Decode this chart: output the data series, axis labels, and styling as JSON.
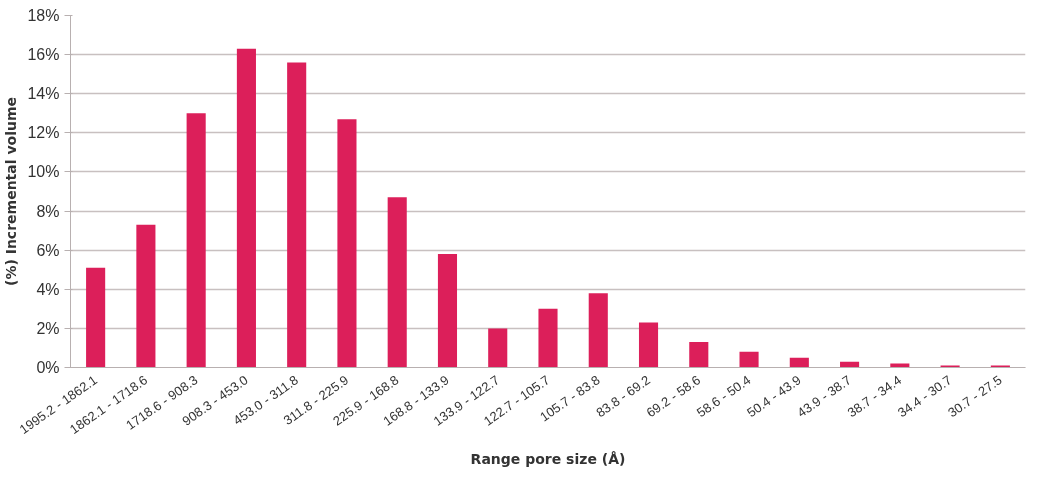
{
  "chart_data": {
    "type": "bar",
    "xlabel": "Range pore size (Å)",
    "ylabel": "(%) Incremental volume",
    "categories": [
      "1995.2 - 1862.1",
      "1862.1 - 1718.6",
      "1718.6 - 908.3",
      "908.3 - 453.0",
      "453.0 - 311.8",
      "311.8 - 225.9",
      "225.9 - 168.8",
      "168.8 - 133.9",
      "133.9 - 122.7",
      "122.7 - 105.7",
      "105.7 - 83.8",
      "83.8 - 69.2",
      "69.2 - 58.6",
      "58.6 - 50.4",
      "50.4 - 43.9",
      "43.9 - 38.7",
      "38.7 - 34.4",
      "34.4 - 30.7",
      "30.7 - 27.5"
    ],
    "values": [
      5.1,
      7.3,
      13.0,
      16.3,
      15.6,
      12.7,
      8.7,
      5.8,
      2.0,
      3.0,
      3.8,
      2.3,
      1.3,
      0.8,
      0.5,
      0.3,
      0.2,
      0.1,
      0.1
    ],
    "color": "#dc1f5a",
    "ylim": [
      0,
      18
    ],
    "yticks": [
      {
        "value": 0,
        "label": "0%"
      },
      {
        "value": 2,
        "label": "2%"
      },
      {
        "value": 4,
        "label": "4%"
      },
      {
        "value": 6,
        "label": "6%"
      },
      {
        "value": 8,
        "label": "8%"
      },
      {
        "value": 10,
        "label": "10%"
      },
      {
        "value": 12,
        "label": "12%"
      },
      {
        "value": 14,
        "label": "14%"
      },
      {
        "value": 16,
        "label": "16%"
      },
      {
        "value": 18,
        "label": "18%"
      }
    ],
    "grid": "y"
  }
}
